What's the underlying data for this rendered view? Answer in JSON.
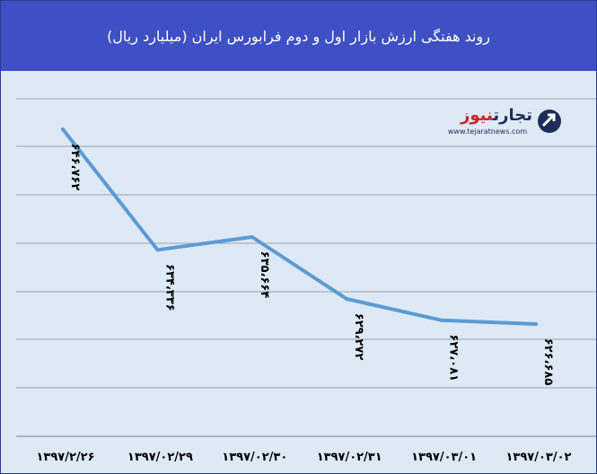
{
  "header": {
    "title": "روند هفتگی ارزش بازار اول و دوم فرابورس  ایران (میلیارد ریال)"
  },
  "logo": {
    "name_part1": "تجارت",
    "name_part2": "نیوز",
    "url": "www.tejaratnews.com"
  },
  "chart_data": {
    "type": "line",
    "title": "روند هفتگی ارزش بازار اول و دوم فرابورس  ایران (میلیارد ریال)",
    "categories": [
      "۱۳۹۷/۲/۲۶",
      "۱۳۹۷/۰۲/۲۹",
      "۱۳۹۷/۰۲/۳۰",
      "۱۳۹۷/۰۲/۳۱",
      "۱۳۹۷/۰۳/۰۱",
      "۱۳۹۷/۰۳/۰۲"
    ],
    "values": [
      646762,
      634336,
      635664,
      629272,
      627081,
      626685
    ],
    "data_labels": [
      "۶۴۶،۷۶۲",
      "۶۳۴،۳۳۶",
      "۶۳۵،۶۶۴",
      "۶۲۹،۲۷۲",
      "۶۲۷،۰۸۱",
      "۶۲۶،۶۸۵"
    ],
    "color": "#5b9bd5",
    "grid": true,
    "legend": "none"
  }
}
